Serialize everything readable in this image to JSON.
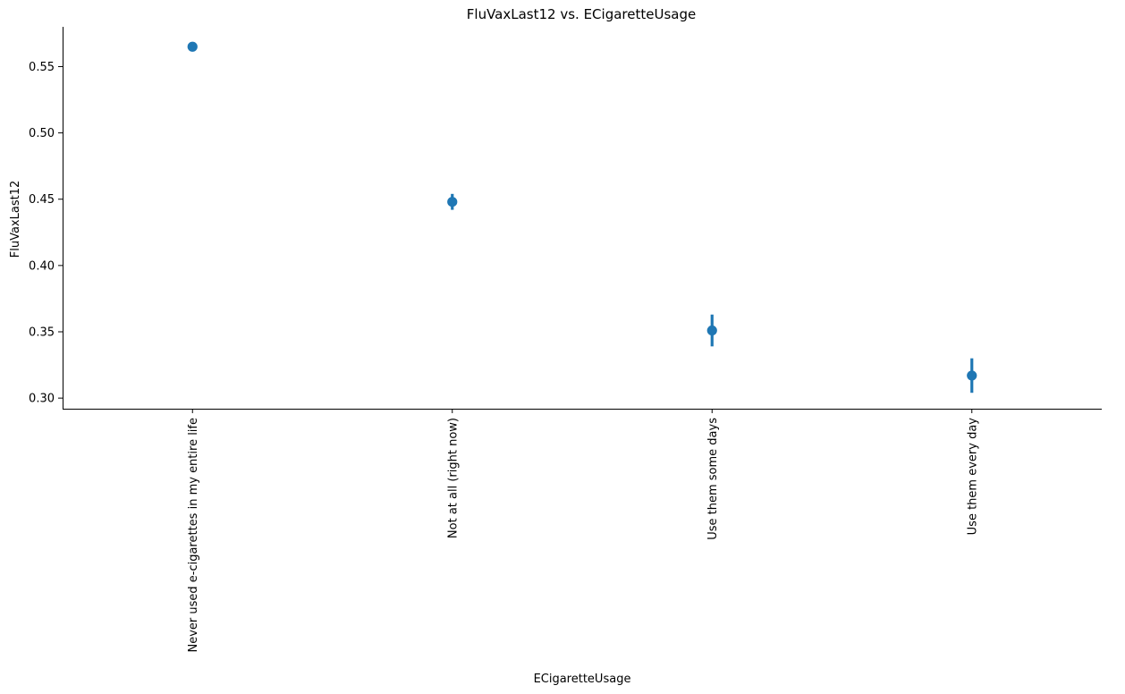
{
  "chart_data": {
    "type": "scatter",
    "style": "pointplot-with-error-bars",
    "title": "FluVaxLast12 vs. ECigaretteUsage",
    "xlabel": "ECigaretteUsage",
    "ylabel": "FluVaxLast12",
    "categories": [
      "Never used e-cigarettes in my entire life",
      "Not at all (right now)",
      "Use them some days",
      "Use them every day"
    ],
    "values": [
      0.565,
      0.448,
      0.351,
      0.317
    ],
    "ci_low": [
      0.564,
      0.442,
      0.339,
      0.304
    ],
    "ci_high": [
      0.566,
      0.454,
      0.363,
      0.33
    ],
    "ylim": [
      0.292,
      0.58
    ],
    "yticks": [
      "0.30",
      "0.35",
      "0.40",
      "0.45",
      "0.50",
      "0.55"
    ],
    "ytick_values": [
      0.3,
      0.35,
      0.4,
      0.45,
      0.5,
      0.55
    ],
    "grid": false,
    "color": "#1f77b4"
  }
}
